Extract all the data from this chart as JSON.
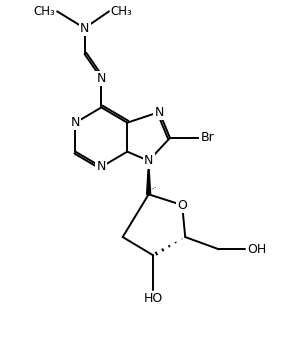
{
  "bg_color": "#ffffff",
  "line_color": "#000000",
  "line_width": 1.4,
  "font_size": 9,
  "fig_width": 2.82,
  "fig_height": 3.46,
  "xlim": [
    0.5,
    8.5
  ],
  "ylim": [
    2.2,
    13.5
  ]
}
